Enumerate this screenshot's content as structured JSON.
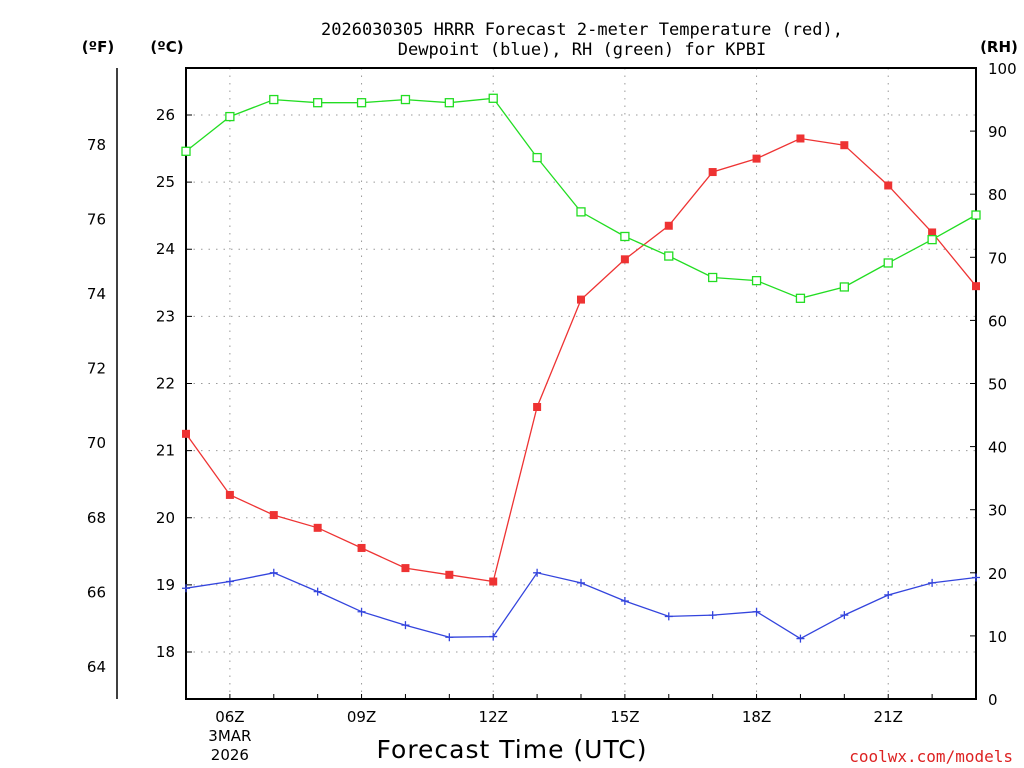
{
  "colors": {
    "temperature": "#ee3333",
    "dewpoint": "#3344dd",
    "rh": "#22dd22",
    "credit": "#dd2222"
  },
  "chart_data": {
    "type": "line",
    "title_line1": "2026030305 HRRR Forecast 2-meter Temperature (red),",
    "title_line2": "Dewpoint (blue), RH (green) for KPBI",
    "xlabel": "Forecast Time (UTC)",
    "credit": "coolwx.com/models",
    "unit_f": "(ºF)",
    "unit_c": "(ºC)",
    "unit_rh": "(RH)",
    "x_hours": [
      5,
      6,
      7,
      8,
      9,
      10,
      11,
      12,
      13,
      14,
      15,
      16,
      17,
      18,
      19,
      20,
      21,
      22,
      23
    ],
    "xlim": [
      5,
      23
    ],
    "x_ticks": [
      {
        "hour": 6,
        "label": "06Z",
        "sub1": "3MAR",
        "sub2": "2026"
      },
      {
        "hour": 9,
        "label": "09Z"
      },
      {
        "hour": 12,
        "label": "12Z"
      },
      {
        "hour": 15,
        "label": "15Z"
      },
      {
        "hour": 18,
        "label": "18Z"
      },
      {
        "hour": 21,
        "label": "21Z"
      }
    ],
    "ylim_c": [
      17.3,
      26.7
    ],
    "ylim_rh": [
      0,
      100
    ],
    "c_ticks": [
      18,
      19,
      20,
      21,
      22,
      23,
      24,
      25,
      26
    ],
    "f_ticks": [
      64,
      66,
      68,
      70,
      72,
      74,
      76,
      78
    ],
    "rh_ticks": [
      0,
      10,
      20,
      30,
      40,
      50,
      60,
      70,
      80,
      90,
      100
    ],
    "series": [
      {
        "name": "Temperature",
        "axis": "c",
        "marker": "filled-square",
        "color": "#ee3333",
        "values": [
          21.25,
          20.34,
          20.04,
          19.85,
          19.55,
          19.25,
          19.15,
          19.05,
          21.65,
          23.25,
          23.85,
          24.35,
          25.15,
          25.35,
          25.65,
          25.55,
          24.95,
          24.25,
          23.45
        ]
      },
      {
        "name": "Dewpoint",
        "axis": "c",
        "marker": "plus",
        "color": "#3344dd",
        "values": [
          18.95,
          19.05,
          19.18,
          18.9,
          18.6,
          18.4,
          18.22,
          18.23,
          19.18,
          19.03,
          18.76,
          18.53,
          18.55,
          18.6,
          18.2,
          18.55,
          18.85,
          19.03,
          19.11
        ]
      },
      {
        "name": "RH",
        "axis": "rh",
        "marker": "open-square",
        "color": "#22dd22",
        "values": [
          86.8,
          92.3,
          95.0,
          94.5,
          94.5,
          95.0,
          94.5,
          95.2,
          85.8,
          77.2,
          73.3,
          70.2,
          66.8,
          66.3,
          63.5,
          65.3,
          69.1,
          72.8,
          76.7
        ]
      }
    ]
  }
}
